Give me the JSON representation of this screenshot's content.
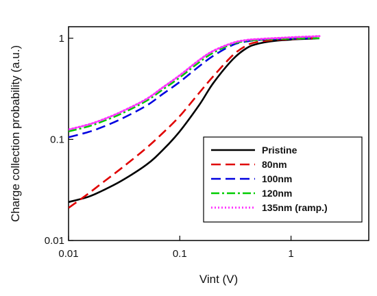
{
  "chart_data": {
    "type": "line",
    "title": "",
    "xlabel": "Vint (V)",
    "ylabel": "Charge collection probability (a.u.)",
    "xscale": "log",
    "yscale": "log",
    "xlim": [
      0.01,
      5
    ],
    "ylim": [
      0.01,
      1.3
    ],
    "xticks": [
      0.01,
      0.1,
      1
    ],
    "xtick_labels": [
      "0.01",
      "0.1",
      "1"
    ],
    "yticks": [
      0.01,
      0.1,
      1
    ],
    "ytick_labels": [
      "0.01",
      "0.1",
      "1"
    ],
    "grid": false,
    "legend_position": "bottom-right",
    "series": [
      {
        "name": "Pristine",
        "color": "#000000",
        "dash": "solid",
        "x": [
          0.01,
          0.015,
          0.02,
          0.03,
          0.05,
          0.07,
          0.1,
          0.15,
          0.2,
          0.3,
          0.4,
          0.5,
          0.7,
          1.0,
          1.5,
          1.8
        ],
        "y": [
          0.024,
          0.027,
          0.031,
          0.039,
          0.056,
          0.078,
          0.12,
          0.22,
          0.36,
          0.62,
          0.8,
          0.88,
          0.94,
          0.97,
          0.99,
          1.0
        ]
      },
      {
        "name": "80nm",
        "color": "#e00000",
        "dash": "dash",
        "x": [
          0.01,
          0.015,
          0.02,
          0.03,
          0.05,
          0.07,
          0.1,
          0.15,
          0.2,
          0.3,
          0.4,
          0.5,
          0.7,
          1.0,
          1.5,
          1.8
        ],
        "y": [
          0.021,
          0.029,
          0.037,
          0.052,
          0.082,
          0.115,
          0.17,
          0.29,
          0.42,
          0.68,
          0.85,
          0.92,
          0.96,
          0.98,
          1.0,
          1.0
        ]
      },
      {
        "name": "100nm",
        "color": "#0000e0",
        "dash": "dash",
        "x": [
          0.01,
          0.015,
          0.02,
          0.03,
          0.05,
          0.07,
          0.1,
          0.15,
          0.2,
          0.3,
          0.4,
          0.5,
          0.7,
          1.0,
          1.5,
          1.8
        ],
        "y": [
          0.105,
          0.118,
          0.132,
          0.16,
          0.215,
          0.28,
          0.37,
          0.53,
          0.67,
          0.86,
          0.93,
          0.96,
          0.98,
          0.99,
          1.0,
          1.0
        ]
      },
      {
        "name": "120nm",
        "color": "#00cc00",
        "dash": "dashdot",
        "x": [
          0.01,
          0.015,
          0.02,
          0.03,
          0.05,
          0.07,
          0.1,
          0.15,
          0.2,
          0.3,
          0.4,
          0.5,
          0.7,
          1.0,
          1.5,
          1.8
        ],
        "y": [
          0.12,
          0.134,
          0.15,
          0.18,
          0.24,
          0.31,
          0.41,
          0.58,
          0.72,
          0.88,
          0.94,
          0.96,
          0.98,
          0.99,
          1.0,
          1.0
        ]
      },
      {
        "name": "135nm (ramp.)",
        "color": "#ff33ff",
        "dash": "dot",
        "x": [
          0.01,
          0.015,
          0.02,
          0.03,
          0.05,
          0.07,
          0.1,
          0.15,
          0.2,
          0.3,
          0.4,
          0.5,
          0.7,
          1.0,
          1.5,
          1.8
        ],
        "y": [
          0.125,
          0.14,
          0.156,
          0.188,
          0.25,
          0.325,
          0.43,
          0.61,
          0.75,
          0.9,
          0.96,
          0.98,
          1.0,
          1.02,
          1.04,
          1.05
        ]
      }
    ]
  }
}
